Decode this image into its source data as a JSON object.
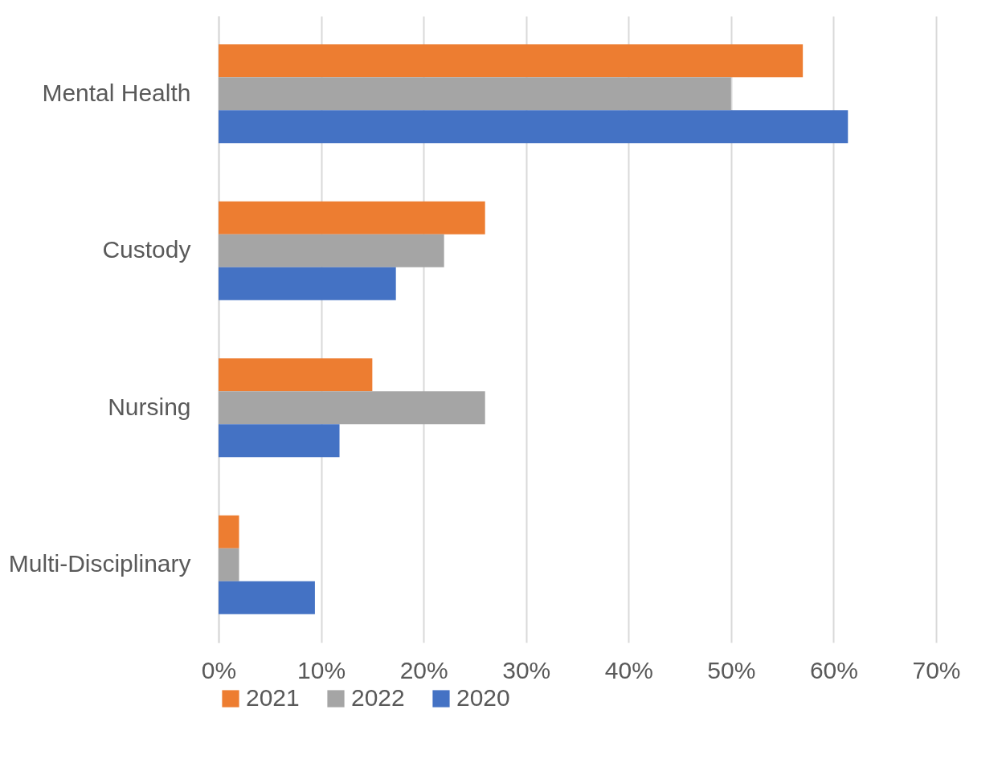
{
  "chart_data": {
    "type": "bar",
    "orientation": "horizontal",
    "categories": [
      "Mental Health",
      "Custody",
      "Nursing",
      "Multi-Disciplinary"
    ],
    "series": [
      {
        "name": "2021",
        "color": "#ed7d31",
        "values": [
          57,
          26,
          15,
          2
        ]
      },
      {
        "name": "2022",
        "color": "#a5a5a5",
        "values": [
          50,
          22,
          26,
          2
        ]
      },
      {
        "name": "2020",
        "color": "#4472c4",
        "values": [
          61.4,
          17.3,
          11.8,
          9.4
        ]
      }
    ],
    "xlim": [
      0,
      70
    ],
    "xticks": [
      {
        "value": 0,
        "label": "0%"
      },
      {
        "value": 10,
        "label": "10%"
      },
      {
        "value": 20,
        "label": "20%"
      },
      {
        "value": 30,
        "label": "30%"
      },
      {
        "value": 40,
        "label": "40%"
      },
      {
        "value": 50,
        "label": "50%"
      },
      {
        "value": 60,
        "label": "60%"
      },
      {
        "value": 70,
        "label": "70%"
      }
    ],
    "grid": "x",
    "legend": "bottom"
  }
}
